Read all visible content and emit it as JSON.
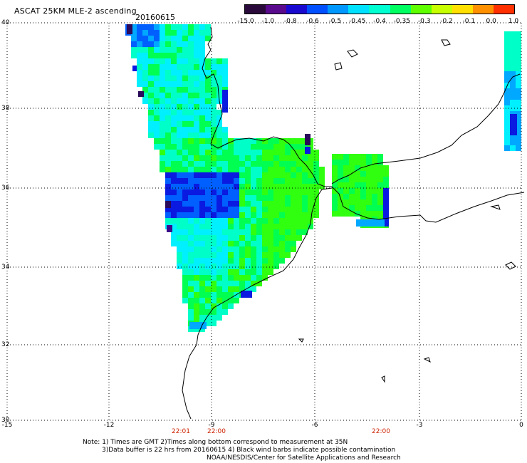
{
  "header": {
    "title": "ASCAT 25KM MLE-2 ascending",
    "date": "20160615"
  },
  "colorbar": {
    "labels": [
      "-15.0",
      "-1.0",
      "-0.8",
      "-0.6",
      "-0.5",
      "-0.45",
      "-0.4",
      "-0.35",
      "-0.3",
      "-0.2",
      "-0.1",
      "0.0",
      "1.0"
    ],
    "colors": [
      "#2a0a3a",
      "#5a0a8c",
      "#1a0ad0",
      "#0050ff",
      "#0098ff",
      "#00e0ff",
      "#00ffd0",
      "#00ff60",
      "#60ff00",
      "#c8ff00",
      "#ffe000",
      "#ff9000",
      "#ff3000"
    ]
  },
  "map": {
    "lat_labels": [
      "40",
      "38",
      "36",
      "34",
      "32",
      "30"
    ],
    "lon_labels": [
      "-15",
      "-12",
      "-9",
      "-6",
      "-3",
      "0"
    ],
    "time_labels": [
      "22:01",
      "22:00",
      "22:00"
    ],
    "field_colors": {
      "deep_blue": "#0a1ae0",
      "blue": "#0060ff",
      "light_blue": "#00a8ff",
      "cyan": "#00f0ff",
      "aqua": "#00ffc8",
      "green": "#00ff50",
      "lime": "#30ff10",
      "purple": "#3a0a8a",
      "navy": "#2a0a5a"
    }
  },
  "notes": {
    "line1": "Note: 1) Times are GMT 2)Times along bottom correspond to measurement at 35N",
    "line2": "3)Data buffer is 22 hrs from 20160615 4) Black wind barbs indicate possible contamination",
    "line3": "NOAA/NESDIS/Center for Satellite Applications and Research"
  }
}
